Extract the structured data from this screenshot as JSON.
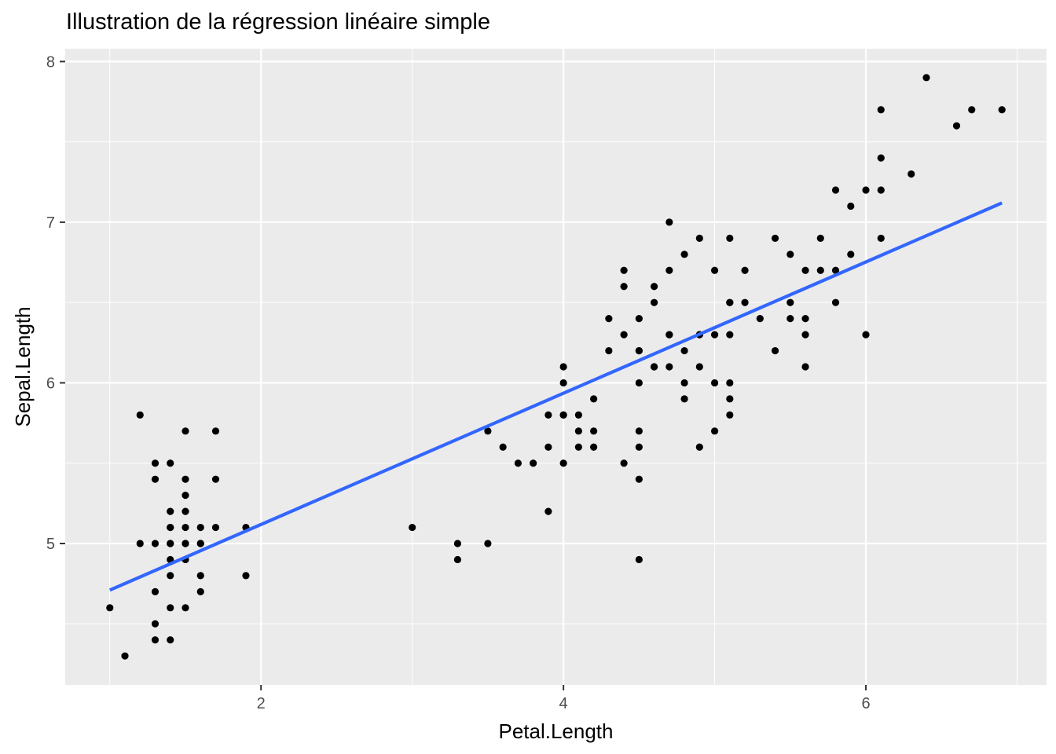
{
  "chart_data": {
    "type": "scatter",
    "title": "Illustration de la régression linéaire simple",
    "xlabel": "Petal.Length",
    "ylabel": "Sepal.Length",
    "xlim": [
      0.705,
      7.195
    ],
    "ylim": [
      4.12,
      8.08
    ],
    "x_ticks": [
      2,
      4,
      6
    ],
    "y_ticks": [
      5,
      6,
      7,
      8
    ],
    "grid": true,
    "colors": {
      "panel": "#ebebeb",
      "grid": "#ffffff",
      "points": "#000000",
      "fit_line": "#3366ff"
    },
    "fit_line": {
      "type": "linear",
      "x": [
        1.0,
        6.9
      ],
      "y": [
        4.71,
        7.12
      ]
    },
    "x": [
      1.0,
      1.1,
      1.2,
      1.2,
      1.3,
      1.3,
      1.3,
      1.3,
      1.3,
      1.3,
      1.4,
      1.4,
      1.4,
      1.4,
      1.4,
      1.4,
      1.4,
      1.4,
      1.4,
      1.4,
      1.5,
      1.5,
      1.5,
      1.5,
      1.5,
      1.5,
      1.5,
      1.5,
      1.5,
      1.6,
      1.6,
      1.6,
      1.6,
      1.6,
      1.7,
      1.7,
      1.7,
      1.9,
      1.9,
      3.0,
      3.3,
      3.3,
      3.5,
      3.5,
      3.6,
      3.7,
      3.8,
      3.9,
      3.9,
      3.9,
      4.0,
      4.0,
      4.0,
      4.0,
      4.0,
      4.1,
      4.1,
      4.1,
      4.2,
      4.2,
      4.2,
      4.3,
      4.3,
      4.4,
      4.4,
      4.4,
      4.4,
      4.5,
      4.5,
      4.5,
      4.5,
      4.5,
      4.5,
      4.5,
      4.5,
      4.6,
      4.6,
      4.6,
      4.6,
      4.7,
      4.7,
      4.7,
      4.7,
      4.7,
      4.8,
      4.8,
      4.8,
      4.8,
      4.9,
      4.9,
      4.9,
      4.9,
      4.9,
      5.0,
      5.0,
      5.0,
      5.0,
      5.1,
      5.1,
      5.1,
      5.1,
      5.1,
      5.1,
      5.1,
      5.2,
      5.2,
      5.3,
      5.4,
      5.4,
      5.5,
      5.5,
      5.5,
      5.6,
      5.6,
      5.6,
      5.6,
      5.7,
      5.7,
      5.8,
      5.8,
      5.8,
      5.9,
      5.9,
      6.0,
      6.0,
      6.1,
      6.1,
      6.1,
      6.1,
      6.3,
      6.4,
      6.6,
      6.7,
      6.9
    ],
    "y": [
      4.6,
      4.3,
      5.8,
      5.0,
      5.5,
      5.4,
      5.0,
      4.7,
      4.5,
      4.4,
      5.5,
      5.2,
      5.1,
      5.0,
      4.9,
      4.8,
      4.6,
      4.4,
      5.1,
      5.0,
      5.7,
      5.4,
      5.3,
      5.2,
      5.1,
      5.0,
      4.9,
      4.6,
      5.0,
      5.1,
      5.0,
      4.8,
      4.7,
      5.0,
      5.7,
      5.4,
      5.1,
      5.1,
      4.8,
      5.1,
      5.0,
      4.9,
      5.7,
      5.0,
      5.6,
      5.5,
      5.5,
      5.8,
      5.6,
      5.2,
      6.1,
      6.0,
      5.8,
      5.5,
      5.8,
      5.8,
      5.7,
      5.6,
      5.9,
      5.7,
      5.6,
      6.4,
      6.2,
      6.7,
      6.6,
      6.3,
      5.5,
      6.4,
      6.2,
      6.0,
      5.7,
      5.6,
      5.4,
      4.9,
      6.2,
      6.6,
      6.5,
      6.1,
      6.1,
      7.0,
      6.7,
      6.3,
      6.1,
      6.3,
      6.8,
      6.2,
      6.0,
      5.9,
      6.9,
      6.3,
      6.1,
      5.6,
      6.3,
      6.7,
      6.3,
      6.0,
      5.7,
      6.9,
      6.5,
      6.3,
      6.0,
      5.9,
      5.8,
      6.5,
      6.7,
      6.5,
      6.4,
      6.9,
      6.2,
      6.8,
      6.5,
      6.4,
      6.7,
      6.4,
      6.3,
      6.1,
      6.9,
      6.7,
      7.2,
      6.7,
      6.5,
      7.1,
      6.8,
      7.2,
      6.3,
      7.7,
      7.4,
      7.2,
      6.9,
      7.3,
      7.9,
      7.6,
      7.7,
      7.7
    ]
  }
}
